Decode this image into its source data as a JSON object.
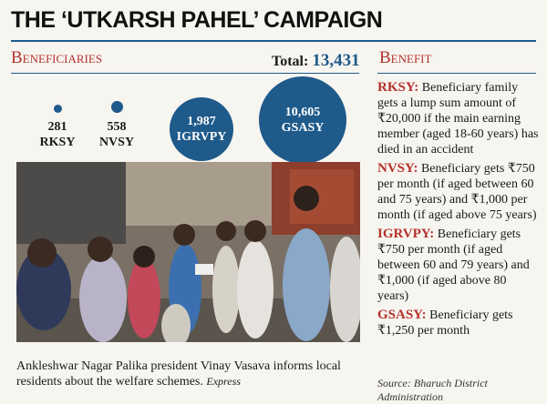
{
  "title": "THE ‘UTKARSH PAHEL’ CAMPAIGN",
  "beneficiaries": {
    "heading": "Beneficiaries",
    "total_label": "Total:",
    "total_value": "13,431",
    "schemes": [
      {
        "count": "281",
        "name": "RKSY",
        "value": 281
      },
      {
        "count": "558",
        "name": "NVSY",
        "value": 558
      },
      {
        "count": "1,987",
        "name": "IGRVPY",
        "value": 1987
      },
      {
        "count": "10,605",
        "name": "GSASY",
        "value": 10605
      }
    ]
  },
  "benefit": {
    "heading": "Benefit",
    "items": [
      {
        "abbr": "RKSY:",
        "text": " Beneficiary family gets a lump sum amount of ₹20,000 if the main earning member (aged 18-60 years) has died in an accident"
      },
      {
        "abbr": "NVSY:",
        "text": " Beneficiary gets ₹750 per month (if aged between 60 and 75 years) and ₹1,000 per month (if aged above 75 years)"
      },
      {
        "abbr": "IGRVPY:",
        "text": " Beneficiary gets ₹750 per month (if aged between 60 and 79 years) and ₹1,000 (if aged above 80 years)"
      },
      {
        "abbr": "GSASY:",
        "text": " Beneficiary gets ₹1,250 per month"
      }
    ]
  },
  "caption": {
    "text": "Ankleshwar Nagar Palika president Vinay Vasava informs local residents about the welfare schemes. ",
    "credit": "Express"
  },
  "source": "Source: Bharuch District Administration",
  "colors": {
    "accent_blue": "#1e5a8a",
    "accent_red": "#b5322c"
  }
}
